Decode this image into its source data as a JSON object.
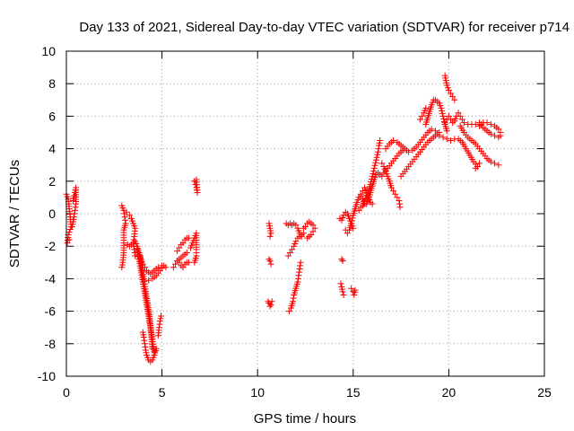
{
  "chart_data": {
    "type": "scatter",
    "title": "Day 133 of 2021, Sidereal Day-to-day VTEC variation (SDTVAR) for receiver p714",
    "xlabel": "GPS time / hours",
    "ylabel": "SDTVAR / TECUs",
    "xlim": [
      0,
      25
    ],
    "ylim": [
      -10,
      10
    ],
    "xticks": [
      "0",
      "5",
      "10",
      "15",
      "20",
      "25"
    ],
    "yticks": [
      "-10",
      "-8",
      "-6",
      "-4",
      "-2",
      "0",
      "2",
      "4",
      "6",
      "8",
      "10"
    ],
    "grid": true,
    "marker": "+",
    "series_color": "#ff0000",
    "segments": [
      [
        [
          0.0,
          1.2
        ],
        [
          0.1,
          0.9
        ],
        [
          0.15,
          0.3
        ],
        [
          0.2,
          -0.2
        ],
        [
          0.25,
          -0.8
        ],
        [
          0.1,
          -1.3
        ],
        [
          0.05,
          -1.8
        ],
        [
          0.15,
          -1.6
        ]
      ],
      [
        [
          0.35,
          0.8
        ],
        [
          0.4,
          1.1
        ],
        [
          0.45,
          1.3
        ],
        [
          0.5,
          1.6
        ],
        [
          0.5,
          0.6
        ],
        [
          0.45,
          0.2
        ],
        [
          0.4,
          -0.2
        ],
        [
          0.35,
          -0.5
        ],
        [
          0.3,
          -0.8
        ]
      ],
      [
        [
          2.9,
          0.5
        ],
        [
          3.0,
          0.2
        ],
        [
          3.05,
          -0.2
        ],
        [
          3.1,
          -0.6
        ],
        [
          3.0,
          -1.0
        ],
        [
          3.0,
          -1.8
        ],
        [
          3.0,
          -2.4
        ],
        [
          2.95,
          -3.0
        ],
        [
          2.9,
          -3.3
        ]
      ],
      [
        [
          3.15,
          0.1
        ],
        [
          3.3,
          -0.1
        ],
        [
          3.4,
          -0.3
        ],
        [
          3.5,
          -0.6
        ],
        [
          3.6,
          -0.9
        ],
        [
          3.55,
          -1.4
        ],
        [
          3.5,
          -1.8
        ],
        [
          3.55,
          -2.2
        ],
        [
          3.6,
          -2.6
        ]
      ],
      [
        [
          3.2,
          -1.9
        ],
        [
          3.3,
          -2.0
        ],
        [
          3.4,
          -1.9
        ],
        [
          3.5,
          -1.8
        ],
        [
          3.6,
          -1.7
        ],
        [
          3.7,
          -2.0
        ],
        [
          3.8,
          -2.4
        ],
        [
          3.9,
          -2.8
        ],
        [
          4.0,
          -3.1
        ],
        [
          4.1,
          -3.3
        ],
        [
          4.2,
          -3.5
        ],
        [
          4.4,
          -3.7
        ],
        [
          4.6,
          -3.5
        ],
        [
          4.8,
          -3.3
        ],
        [
          5.0,
          -3.2
        ],
        [
          5.2,
          -3.3
        ]
      ],
      [
        [
          3.7,
          -2.2
        ],
        [
          3.8,
          -2.8
        ],
        [
          3.9,
          -3.5
        ],
        [
          4.0,
          -4.2
        ],
        [
          4.1,
          -4.9
        ],
        [
          4.2,
          -5.6
        ],
        [
          4.3,
          -6.3
        ],
        [
          4.4,
          -7.0
        ],
        [
          4.5,
          -7.7
        ],
        [
          4.55,
          -8.2
        ],
        [
          4.6,
          -8.5
        ]
      ],
      [
        [
          3.85,
          -2.6
        ],
        [
          3.95,
          -3.3
        ],
        [
          4.05,
          -4.0
        ],
        [
          4.15,
          -4.8
        ],
        [
          4.25,
          -5.5
        ],
        [
          4.35,
          -6.2
        ],
        [
          4.4,
          -6.9
        ],
        [
          4.45,
          -7.6
        ],
        [
          4.5,
          -8.3
        ]
      ],
      [
        [
          4.0,
          -7.3
        ],
        [
          4.05,
          -7.6
        ],
        [
          4.1,
          -8.0
        ],
        [
          4.15,
          -8.4
        ],
        [
          4.2,
          -8.7
        ],
        [
          4.3,
          -9.0
        ],
        [
          4.4,
          -9.1
        ],
        [
          4.5,
          -9.0
        ],
        [
          4.6,
          -8.7
        ],
        [
          4.7,
          -8.3
        ]
      ],
      [
        [
          4.8,
          -7.5
        ],
        [
          4.85,
          -7.0
        ],
        [
          4.9,
          -6.6
        ],
        [
          4.95,
          -6.3
        ]
      ],
      [
        [
          4.3,
          -4.1
        ],
        [
          4.5,
          -4.0
        ],
        [
          4.7,
          -3.8
        ],
        [
          4.9,
          -3.5
        ],
        [
          5.1,
          -3.2
        ]
      ],
      [
        [
          5.6,
          -3.3
        ],
        [
          5.7,
          -3.1
        ],
        [
          5.8,
          -2.9
        ],
        [
          5.9,
          -2.8
        ],
        [
          6.0,
          -2.7
        ],
        [
          6.1,
          -2.6
        ],
        [
          6.2,
          -2.5
        ],
        [
          6.3,
          -2.4
        ]
      ],
      [
        [
          5.8,
          -2.3
        ],
        [
          5.9,
          -2.1
        ],
        [
          6.0,
          -1.9
        ],
        [
          6.1,
          -1.8
        ],
        [
          6.2,
          -1.6
        ],
        [
          6.3,
          -1.5
        ],
        [
          6.4,
          -1.5
        ]
      ],
      [
        [
          5.9,
          -3.0
        ],
        [
          6.0,
          -3.2
        ],
        [
          6.1,
          -3.3
        ],
        [
          6.2,
          -3.1
        ],
        [
          6.3,
          -3.0
        ],
        [
          6.4,
          -3.0
        ]
      ],
      [
        [
          6.5,
          -2.1
        ],
        [
          6.6,
          -1.8
        ],
        [
          6.7,
          -1.5
        ],
        [
          6.8,
          -1.2
        ],
        [
          6.8,
          -2.2
        ],
        [
          6.8,
          -2.6
        ],
        [
          6.7,
          -3.0
        ]
      ],
      [
        [
          6.7,
          2.0
        ],
        [
          6.75,
          1.8
        ],
        [
          6.8,
          1.6
        ],
        [
          6.85,
          1.3
        ],
        [
          6.8,
          2.1
        ]
      ],
      [
        [
          10.6,
          -0.6
        ],
        [
          10.65,
          -0.9
        ],
        [
          10.7,
          -1.2
        ],
        [
          10.65,
          -1.4
        ]
      ],
      [
        [
          10.6,
          -2.8
        ],
        [
          10.65,
          -2.9
        ],
        [
          10.7,
          -3.1
        ]
      ],
      [
        [
          10.55,
          -5.4
        ],
        [
          10.6,
          -5.5
        ],
        [
          10.65,
          -5.7
        ],
        [
          10.7,
          -5.6
        ],
        [
          10.75,
          -5.4
        ]
      ],
      [
        [
          11.5,
          -0.6
        ],
        [
          11.6,
          -0.7
        ],
        [
          11.7,
          -0.6
        ],
        [
          11.8,
          -0.7
        ],
        [
          11.9,
          -0.6
        ],
        [
          12.0,
          -0.7
        ],
        [
          12.1,
          -0.9
        ],
        [
          12.2,
          -1.2
        ],
        [
          12.3,
          -1.4
        ]
      ],
      [
        [
          11.6,
          -2.6
        ],
        [
          11.7,
          -2.4
        ],
        [
          11.8,
          -2.2
        ],
        [
          11.9,
          -2.0
        ],
        [
          12.0,
          -1.7
        ],
        [
          12.1,
          -1.5
        ],
        [
          12.2,
          -1.4
        ],
        [
          12.3,
          -1.3
        ],
        [
          12.4,
          -1.2
        ]
      ],
      [
        [
          11.65,
          -6.0
        ],
        [
          11.75,
          -5.8
        ],
        [
          11.85,
          -5.4
        ],
        [
          11.9,
          -5.0
        ],
        [
          12.0,
          -4.6
        ],
        [
          12.1,
          -4.2
        ],
        [
          12.15,
          -3.8
        ],
        [
          12.2,
          -3.4
        ],
        [
          12.25,
          -3.0
        ]
      ],
      [
        [
          12.4,
          -0.9
        ],
        [
          12.5,
          -0.8
        ],
        [
          12.6,
          -0.6
        ],
        [
          12.7,
          -0.5
        ],
        [
          12.8,
          -0.6
        ],
        [
          12.9,
          -0.7
        ],
        [
          13.0,
          -0.9
        ],
        [
          12.9,
          -1.1
        ],
        [
          12.8,
          -1.3
        ],
        [
          12.7,
          -1.4
        ],
        [
          12.6,
          -1.5
        ]
      ],
      [
        [
          14.3,
          -0.3
        ],
        [
          14.4,
          -0.4
        ],
        [
          14.5,
          -0.1
        ],
        [
          14.6,
          0.1
        ],
        [
          14.7,
          0.0
        ],
        [
          14.8,
          -0.3
        ],
        [
          14.9,
          -0.6
        ],
        [
          15.0,
          -0.9
        ]
      ],
      [
        [
          14.4,
          -2.8
        ],
        [
          14.45,
          -2.9
        ]
      ],
      [
        [
          14.35,
          -4.3
        ],
        [
          14.4,
          -4.5
        ],
        [
          14.45,
          -4.8
        ],
        [
          14.5,
          -5.0
        ]
      ],
      [
        [
          14.9,
          -4.6
        ],
        [
          15.0,
          -4.8
        ],
        [
          15.05,
          -5.0
        ],
        [
          15.1,
          -4.7
        ]
      ],
      [
        [
          14.6,
          -1.0
        ],
        [
          14.7,
          -1.2
        ],
        [
          14.8,
          -1.0
        ],
        [
          14.9,
          -0.6
        ],
        [
          15.0,
          -0.1
        ],
        [
          15.1,
          0.3
        ],
        [
          15.2,
          0.7
        ],
        [
          15.3,
          1.0
        ],
        [
          15.4,
          1.1
        ],
        [
          15.5,
          0.9
        ],
        [
          15.6,
          0.6
        ],
        [
          15.7,
          0.6
        ],
        [
          15.8,
          0.9
        ],
        [
          15.9,
          1.3
        ],
        [
          16.0,
          1.7
        ],
        [
          16.1,
          2.1
        ],
        [
          16.2,
          2.4
        ],
        [
          16.3,
          2.5
        ],
        [
          16.4,
          2.4
        ],
        [
          16.5,
          2.3
        ],
        [
          16.6,
          2.5
        ],
        [
          16.8,
          2.8
        ],
        [
          17.0,
          3.1
        ],
        [
          17.2,
          3.4
        ],
        [
          17.4,
          3.7
        ],
        [
          17.6,
          3.9
        ]
      ],
      [
        [
          15.3,
          0.2
        ],
        [
          15.4,
          0.4
        ],
        [
          15.5,
          0.5
        ],
        [
          15.6,
          0.8
        ],
        [
          15.7,
          1.1
        ],
        [
          15.8,
          1.4
        ],
        [
          15.9,
          1.8
        ],
        [
          16.0,
          2.3
        ],
        [
          16.1,
          2.8
        ],
        [
          16.2,
          3.3
        ],
        [
          16.3,
          3.8
        ],
        [
          16.35,
          4.2
        ],
        [
          16.4,
          4.5
        ]
      ],
      [
        [
          15.4,
          1.2
        ],
        [
          15.5,
          1.4
        ],
        [
          15.6,
          1.6
        ],
        [
          15.7,
          1.3
        ],
        [
          15.8,
          1.0
        ],
        [
          15.9,
          0.7
        ],
        [
          16.0,
          0.6
        ]
      ],
      [
        [
          16.5,
          3.1
        ],
        [
          16.6,
          2.9
        ],
        [
          16.7,
          2.6
        ],
        [
          16.8,
          2.3
        ],
        [
          16.9,
          2.0
        ],
        [
          17.0,
          1.6
        ],
        [
          17.1,
          1.4
        ],
        [
          17.2,
          1.2
        ],
        [
          17.3,
          1.0
        ],
        [
          17.4,
          0.8
        ],
        [
          17.45,
          0.4
        ]
      ],
      [
        [
          16.7,
          4.0
        ],
        [
          16.9,
          4.3
        ],
        [
          17.1,
          4.5
        ],
        [
          17.3,
          4.4
        ],
        [
          17.5,
          4.2
        ],
        [
          17.7,
          4.0
        ],
        [
          17.9,
          3.8
        ],
        [
          18.1,
          3.9
        ],
        [
          18.3,
          4.1
        ],
        [
          18.5,
          4.4
        ],
        [
          18.7,
          4.7
        ],
        [
          18.9,
          5.0
        ],
        [
          19.1,
          5.2
        ],
        [
          19.3,
          5.1
        ]
      ],
      [
        [
          17.5,
          2.3
        ],
        [
          17.7,
          2.6
        ],
        [
          17.9,
          2.9
        ],
        [
          18.1,
          3.2
        ],
        [
          18.3,
          3.5
        ],
        [
          18.5,
          3.8
        ],
        [
          18.7,
          4.1
        ],
        [
          18.9,
          4.4
        ],
        [
          19.1,
          4.6
        ],
        [
          19.3,
          4.8
        ],
        [
          19.5,
          5.0
        ]
      ],
      [
        [
          18.8,
          5.5
        ],
        [
          18.9,
          5.9
        ],
        [
          19.0,
          6.3
        ],
        [
          19.1,
          6.7
        ],
        [
          19.2,
          7.0
        ],
        [
          19.3,
          7.0
        ],
        [
          19.4,
          6.9
        ],
        [
          19.5,
          6.8
        ],
        [
          19.6,
          6.5
        ],
        [
          19.7,
          6.0
        ],
        [
          19.8,
          5.5
        ],
        [
          19.9,
          5.1
        ]
      ],
      [
        [
          18.5,
          5.8
        ],
        [
          18.6,
          6.0
        ],
        [
          18.7,
          6.2
        ],
        [
          18.8,
          6.5
        ]
      ],
      [
        [
          19.8,
          8.5
        ],
        [
          19.85,
          8.2
        ],
        [
          19.9,
          7.9
        ],
        [
          20.0,
          7.6
        ],
        [
          20.1,
          7.4
        ],
        [
          20.2,
          7.2
        ],
        [
          20.3,
          7.0
        ]
      ],
      [
        [
          19.8,
          5.6
        ],
        [
          19.9,
          5.8
        ],
        [
          20.0,
          6.0
        ],
        [
          20.1,
          5.8
        ],
        [
          20.2,
          5.6
        ],
        [
          20.3,
          5.7
        ],
        [
          20.4,
          6.0
        ],
        [
          20.5,
          6.2
        ],
        [
          20.6,
          6.0
        ],
        [
          20.7,
          5.8
        ],
        [
          20.8,
          5.6
        ],
        [
          21.0,
          5.5
        ],
        [
          21.2,
          5.5
        ],
        [
          21.4,
          5.5
        ],
        [
          21.6,
          5.4
        ],
        [
          21.8,
          5.6
        ],
        [
          22.0,
          5.6
        ],
        [
          22.2,
          5.5
        ],
        [
          22.4,
          5.4
        ],
        [
          22.6,
          5.2
        ],
        [
          22.7,
          5.0
        ]
      ],
      [
        [
          19.5,
          4.8
        ],
        [
          19.7,
          4.7
        ],
        [
          19.9,
          4.6
        ],
        [
          20.1,
          4.5
        ],
        [
          20.3,
          4.6
        ],
        [
          20.5,
          4.6
        ],
        [
          20.7,
          4.4
        ],
        [
          20.9,
          4.0
        ],
        [
          21.1,
          3.6
        ],
        [
          21.3,
          3.2
        ],
        [
          21.5,
          2.9
        ]
      ],
      [
        [
          20.6,
          5.4
        ],
        [
          20.8,
          5.0
        ],
        [
          21.0,
          4.7
        ],
        [
          21.2,
          4.5
        ],
        [
          21.4,
          4.3
        ],
        [
          21.6,
          4.0
        ],
        [
          21.8,
          3.7
        ],
        [
          22.0,
          3.4
        ],
        [
          22.2,
          3.2
        ],
        [
          22.4,
          3.1
        ],
        [
          22.6,
          3.0
        ]
      ],
      [
        [
          21.6,
          5.6
        ],
        [
          21.8,
          5.3
        ],
        [
          22.0,
          5.1
        ],
        [
          22.2,
          4.9
        ],
        [
          22.4,
          4.8
        ],
        [
          22.6,
          4.7
        ],
        [
          22.7,
          4.8
        ]
      ],
      [
        [
          21.4,
          2.8
        ],
        [
          21.5,
          2.9
        ],
        [
          21.6,
          3.1
        ]
      ]
    ]
  }
}
